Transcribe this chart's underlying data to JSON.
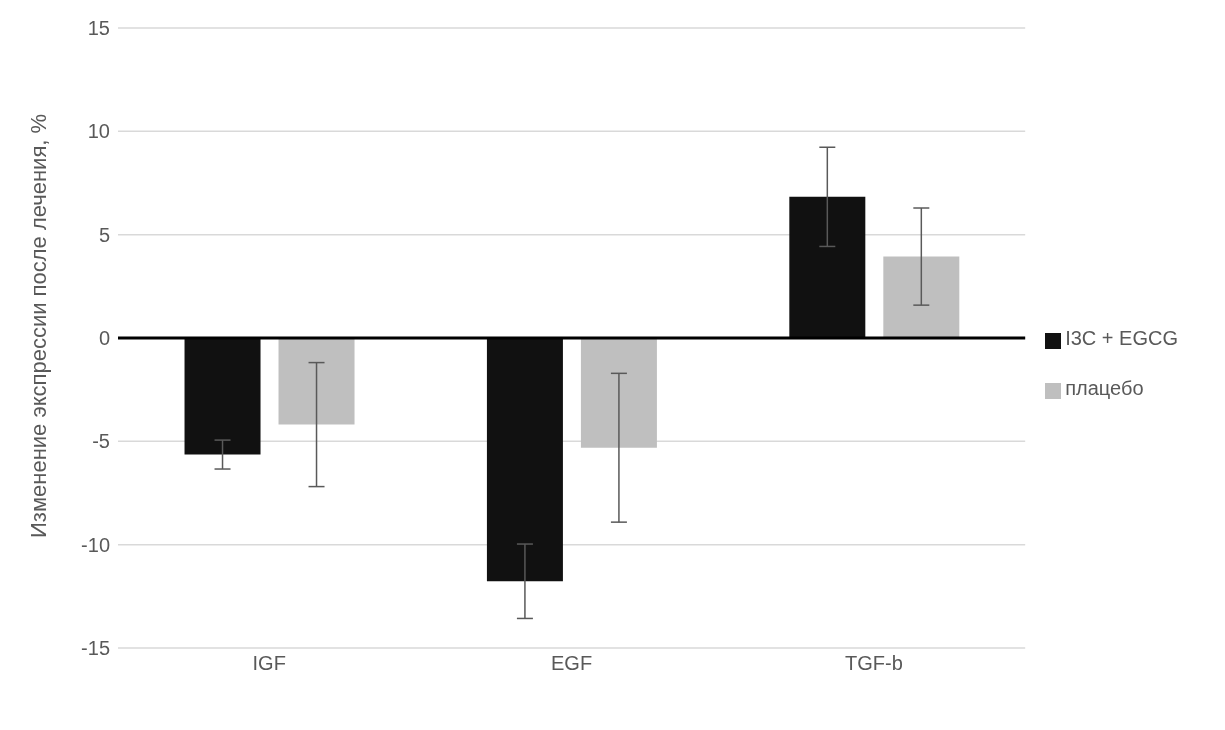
{
  "chart_data": {
    "type": "bar",
    "ylabel": "Изменение экспрессии после лечения, %",
    "categories": [
      "IGF",
      "EGF",
      "TGF-b"
    ],
    "series": [
      {
        "name": "I3C + EGCG",
        "color": "#111111",
        "values": [
          -5.64,
          -11.77,
          6.83
        ],
        "errors": [
          0.7,
          1.8,
          2.4
        ]
      },
      {
        "name": "плацебо",
        "color": "#bfbfbf",
        "values": [
          -4.19,
          -5.31,
          3.94
        ],
        "errors": [
          3.0,
          3.6,
          2.35
        ]
      }
    ],
    "ylim": [
      -15,
      15
    ],
    "yticks": [
      -15,
      -10,
      -5,
      0,
      5,
      10,
      15
    ],
    "grid": "y",
    "legend": "right"
  }
}
